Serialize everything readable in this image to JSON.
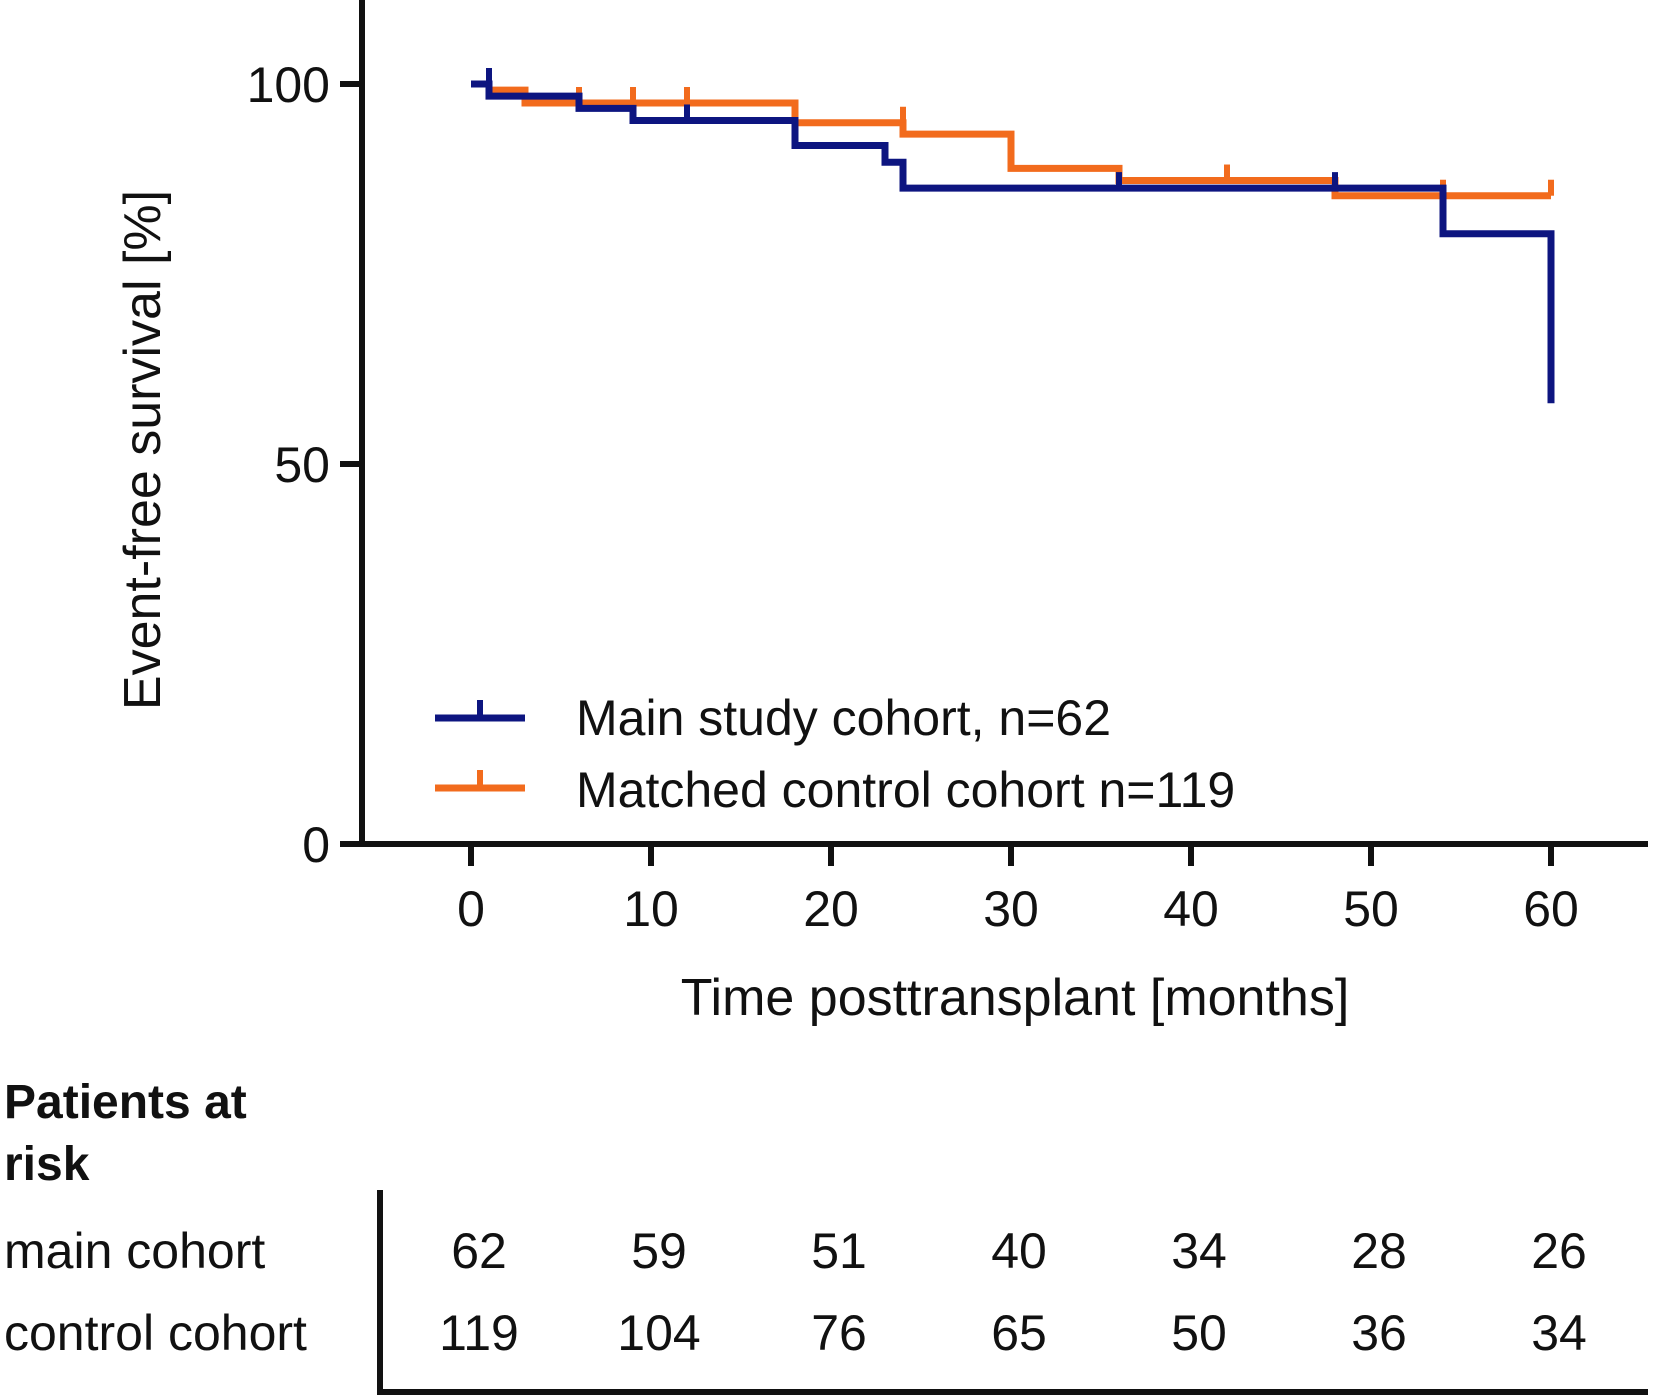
{
  "chart_data": {
    "type": "line",
    "subtype": "kaplan-meier",
    "title": "",
    "xlabel": "Time posttransplant [months]",
    "ylabel": "Event-free survival [%]",
    "xlim": [
      -6,
      65
    ],
    "ylim": [
      0,
      110
    ],
    "x_ticks": [
      0,
      10,
      20,
      30,
      40,
      50,
      60
    ],
    "x_tick_labels": [
      "0",
      "10",
      "20",
      "30",
      "40",
      "50",
      "60"
    ],
    "y_ticks": [
      0,
      50,
      100
    ],
    "y_tick_labels": [
      "0",
      "50",
      "100"
    ],
    "grid": false,
    "legend_position": "bottom-left",
    "series": [
      {
        "name": "Main study cohort, n=62",
        "color": "#0d1580",
        "steps": [
          [
            0,
            100
          ],
          [
            1,
            98.4
          ],
          [
            6,
            96.8
          ],
          [
            9,
            95.2
          ],
          [
            18,
            91.9
          ],
          [
            23,
            89.7
          ],
          [
            24,
            86.3
          ],
          [
            54,
            80.3
          ],
          [
            60,
            58.0
          ]
        ],
        "censored": [
          [
            1,
            100
          ],
          [
            12,
            95.2
          ],
          [
            36,
            86.3
          ],
          [
            48,
            86.3
          ]
        ]
      },
      {
        "name": "Matched control cohort n=119",
        "color": "#f26b1d",
        "steps": [
          [
            0,
            100
          ],
          [
            1,
            99.2
          ],
          [
            3,
            97.5
          ],
          [
            6,
            97.5
          ],
          [
            18,
            94.9
          ],
          [
            24,
            93.4
          ],
          [
            30,
            88.9
          ],
          [
            36,
            87.3
          ],
          [
            48,
            85.3
          ]
        ],
        "censored": [
          [
            1,
            100
          ],
          [
            6,
            97.5
          ],
          [
            9,
            97.5
          ],
          [
            12,
            97.5
          ],
          [
            24,
            94.9
          ],
          [
            42,
            87.3
          ],
          [
            54,
            85.3
          ],
          [
            60,
            85.3
          ]
        ]
      }
    ],
    "x_end": 60
  },
  "risk_table": {
    "heading_line1": "Patients at",
    "heading_line2": "risk",
    "rows": [
      {
        "label": "main cohort",
        "values": [
          "62",
          "59",
          "51",
          "40",
          "34",
          "28",
          "26"
        ]
      },
      {
        "label": "control cohort",
        "values": [
          "119",
          "104",
          "76",
          "65",
          "50",
          "36",
          "34"
        ]
      }
    ]
  }
}
